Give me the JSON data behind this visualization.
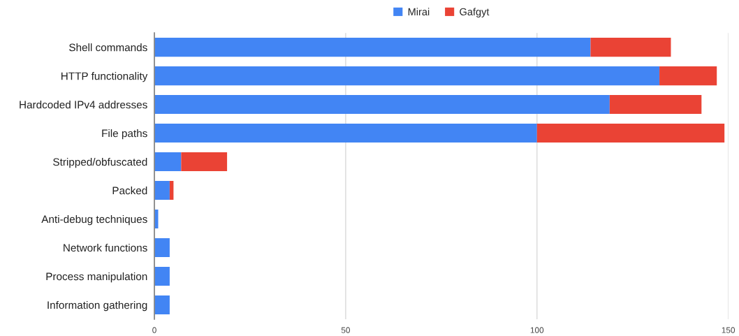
{
  "chart_data": {
    "type": "bar",
    "orientation": "horizontal",
    "stacked": true,
    "categories": [
      "Shell commands",
      "HTTP functionality",
      "Hardcoded IPv4 addresses",
      "File paths",
      "Stripped/obfuscated",
      "Packed",
      "Anti-debug techniques",
      "Network functions",
      "Process manipulation",
      "Information gathering"
    ],
    "series": [
      {
        "name": "Mirai",
        "color": "#4285f4",
        "values": [
          114,
          132,
          119,
          100,
          7,
          4,
          1,
          4,
          4,
          4
        ]
      },
      {
        "name": "Gafgyt",
        "color": "#ea4335",
        "values": [
          21,
          15,
          24,
          49,
          12,
          1,
          null,
          null,
          null,
          null
        ]
      }
    ],
    "xlim": [
      0,
      150
    ],
    "xticks": [
      0,
      50,
      100,
      150
    ],
    "grid": "x",
    "legend": "top"
  }
}
